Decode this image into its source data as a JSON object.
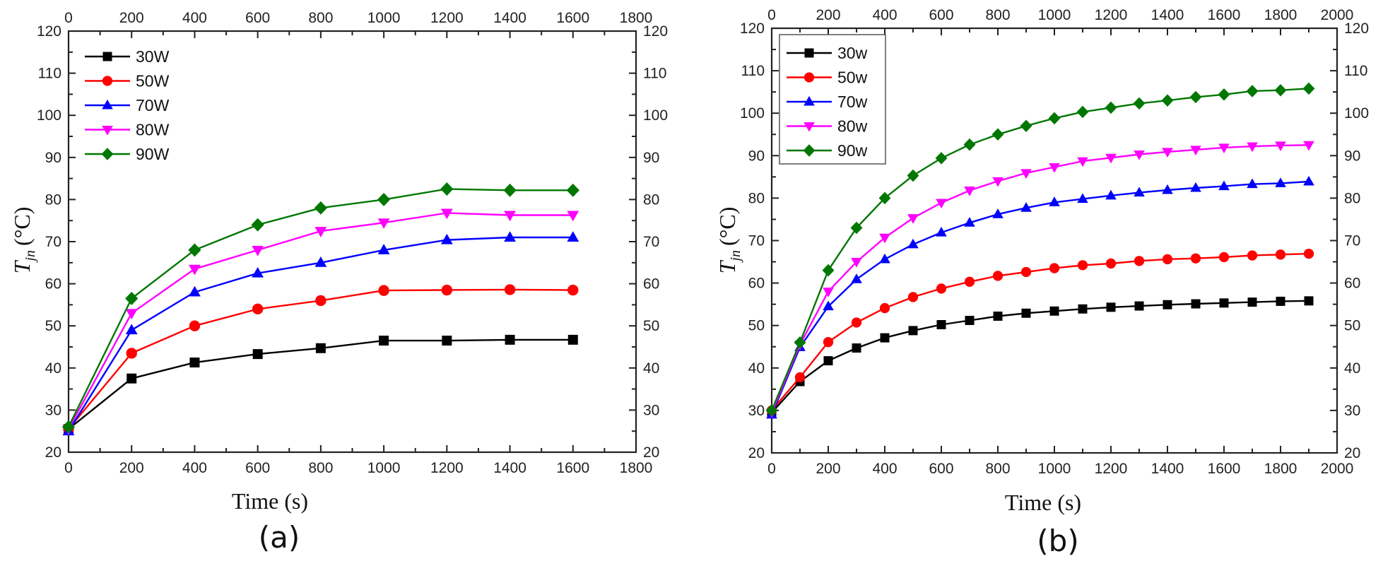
{
  "chart_data": [
    {
      "id": "a",
      "type": "line",
      "caption": "(a)",
      "title": "",
      "xlabel": "Time (s)",
      "ylabel_main": "T",
      "ylabel_sub": "jn",
      "ylabel_unit": "(°C)",
      "xlim": [
        0,
        1800
      ],
      "ylim": [
        20,
        120
      ],
      "xticks": [
        0,
        200,
        400,
        600,
        800,
        1000,
        1200,
        1400,
        1600,
        1800
      ],
      "yticks": [
        20,
        30,
        40,
        50,
        60,
        70,
        80,
        90,
        100,
        110,
        120
      ],
      "legend_position": "top-left",
      "legend_frame": false,
      "grid": false,
      "x": [
        0,
        200,
        400,
        600,
        800,
        1000,
        1200,
        1400,
        1600
      ],
      "series": [
        {
          "name": "30W",
          "color": "#000000",
          "marker": "square",
          "values": [
            25.5,
            37.5,
            41.3,
            43.3,
            44.7,
            46.5,
            46.5,
            46.7,
            46.7
          ]
        },
        {
          "name": "50W",
          "color": "#ff0000",
          "marker": "circle",
          "values": [
            25.5,
            43.5,
            50.0,
            54.0,
            56.0,
            58.4,
            58.5,
            58.6,
            58.5
          ]
        },
        {
          "name": "70W",
          "color": "#0000ff",
          "marker": "triangle-up",
          "values": [
            25.0,
            49.0,
            58.0,
            62.5,
            65.0,
            68.0,
            70.4,
            71.0,
            71.0
          ]
        },
        {
          "name": "80W",
          "color": "#ff00ff",
          "marker": "triangle-down",
          "values": [
            25.5,
            53.0,
            63.5,
            68.0,
            72.5,
            74.5,
            76.8,
            76.3,
            76.3
          ]
        },
        {
          "name": "90W",
          "color": "#007700",
          "marker": "diamond",
          "values": [
            26.0,
            56.5,
            68.0,
            74.0,
            78.0,
            80.0,
            82.5,
            82.2,
            82.2
          ]
        }
      ]
    },
    {
      "id": "b",
      "type": "line",
      "caption": "(b)",
      "title": "",
      "xlabel": "Time (s)",
      "ylabel_main": "T",
      "ylabel_sub": "jn",
      "ylabel_unit": "(°C)",
      "xlim": [
        0,
        2000
      ],
      "ylim": [
        20,
        120
      ],
      "xticks": [
        0,
        200,
        400,
        600,
        800,
        1000,
        1200,
        1400,
        1600,
        1800,
        2000
      ],
      "yticks": [
        20,
        30,
        40,
        50,
        60,
        70,
        80,
        90,
        100,
        110,
        120
      ],
      "legend_position": "top-left",
      "legend_frame": true,
      "grid": false,
      "x": [
        0,
        100,
        200,
        300,
        400,
        500,
        600,
        700,
        800,
        900,
        1000,
        1100,
        1200,
        1300,
        1400,
        1500,
        1600,
        1700,
        1800,
        1900
      ],
      "series": [
        {
          "name": "30w",
          "color": "#000000",
          "marker": "square",
          "values": [
            29.5,
            36.8,
            41.7,
            44.7,
            47.1,
            48.8,
            50.2,
            51.2,
            52.2,
            52.9,
            53.4,
            53.9,
            54.3,
            54.6,
            54.9,
            55.1,
            55.3,
            55.5,
            55.7,
            55.8
          ]
        },
        {
          "name": "50w",
          "color": "#ff0000",
          "marker": "circle",
          "values": [
            30.0,
            37.8,
            46.1,
            50.7,
            54.1,
            56.7,
            58.7,
            60.3,
            61.7,
            62.6,
            63.5,
            64.2,
            64.6,
            65.2,
            65.6,
            65.8,
            66.1,
            66.5,
            66.7,
            66.9
          ]
        },
        {
          "name": "70w",
          "color": "#0000ff",
          "marker": "triangle-up",
          "values": [
            29.0,
            44.9,
            54.5,
            60.9,
            65.6,
            69.1,
            71.9,
            74.2,
            76.2,
            77.7,
            79.0,
            79.8,
            80.6,
            81.3,
            81.9,
            82.4,
            82.8,
            83.3,
            83.5,
            83.9
          ]
        },
        {
          "name": "80w",
          "color": "#ff00ff",
          "marker": "triangle-down",
          "values": [
            29.5,
            45.5,
            58.0,
            65.0,
            70.7,
            75.3,
            78.9,
            81.8,
            84.0,
            85.9,
            87.3,
            88.7,
            89.5,
            90.3,
            90.9,
            91.4,
            91.9,
            92.2,
            92.4,
            92.5
          ]
        },
        {
          "name": "90w",
          "color": "#007700",
          "marker": "diamond",
          "values": [
            30.0,
            46.0,
            63.0,
            73.0,
            80.0,
            85.3,
            89.4,
            92.6,
            95.0,
            97.0,
            98.8,
            100.3,
            101.3,
            102.3,
            103.0,
            103.8,
            104.4,
            105.2,
            105.4,
            105.8
          ]
        }
      ]
    }
  ]
}
